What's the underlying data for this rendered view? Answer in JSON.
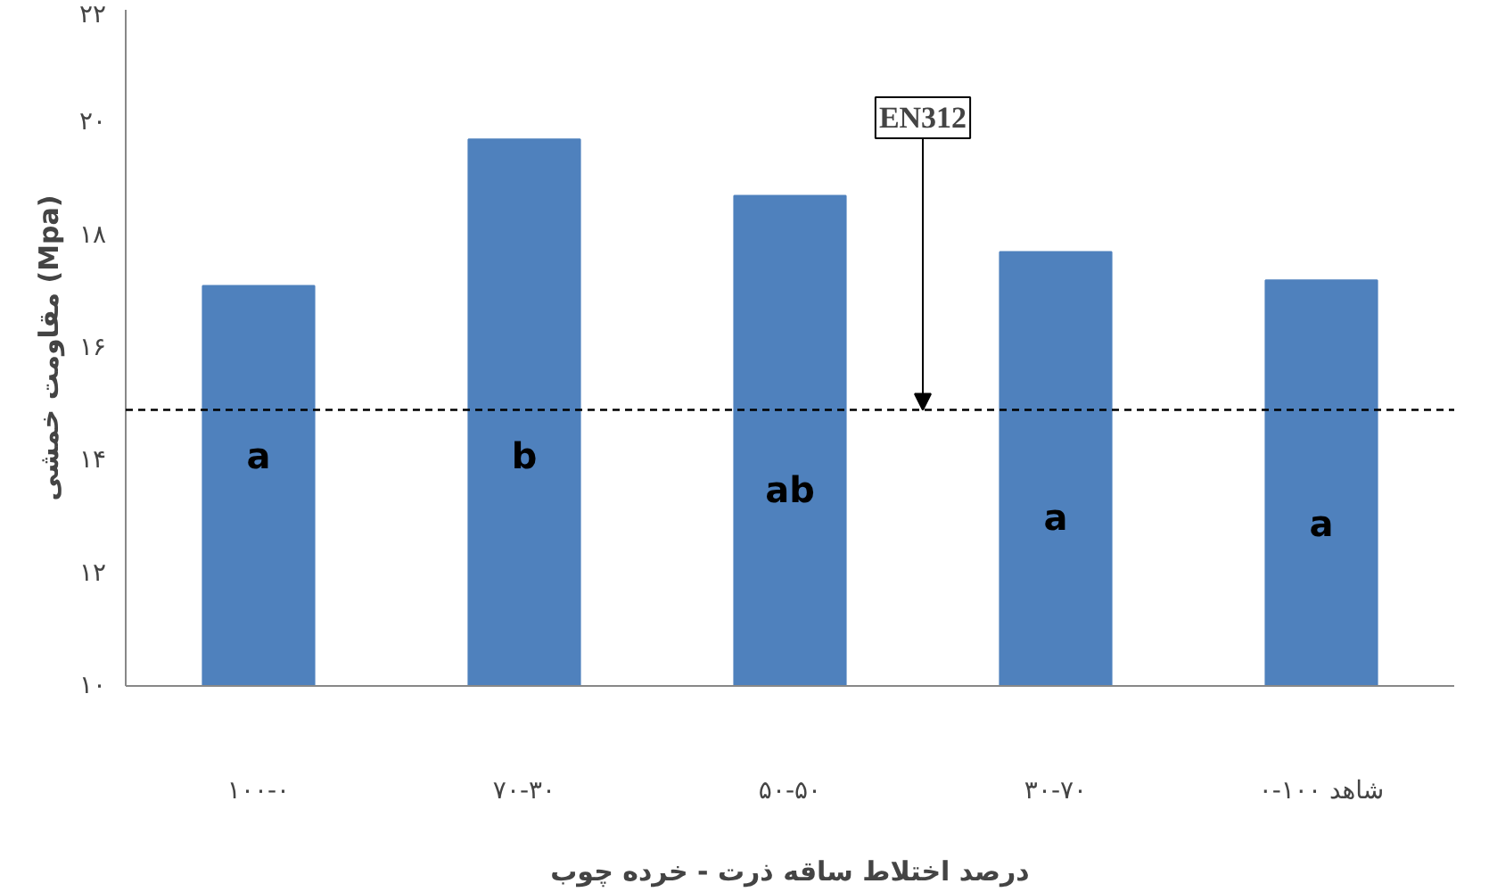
{
  "chart_data": {
    "type": "bar",
    "ylabel": "مقاومت خمشی (Mpa)",
    "xlabel": "درصد اختلاط ساقه ذرت - خرده چوب",
    "categories": [
      "۱۰۰-۰",
      "۷۰-۳۰",
      "۵۰-۵۰",
      "۳۰-۷۰",
      "۰-۱۰۰ شاهد"
    ],
    "values": [
      17.1,
      19.7,
      18.7,
      17.7,
      17.2
    ],
    "color": "#4f81bd",
    "ylim": [
      10,
      22
    ],
    "yticks": [
      {
        "value": 10,
        "label": "۱۰"
      },
      {
        "value": 12,
        "label": "۱۲"
      },
      {
        "value": 14,
        "label": "۱۴"
      },
      {
        "value": 16,
        "label": "۱۶"
      },
      {
        "value": 18,
        "label": "۱۸"
      },
      {
        "value": 20,
        "label": "۲۰"
      },
      {
        "value": 22,
        "label": "۲۲"
      }
    ],
    "grid": false,
    "ref_lines": [
      {
        "axis": "y",
        "value": 14.9,
        "label": "EN312",
        "color": "#000000",
        "line_style": "dashed"
      }
    ],
    "annotations": [
      "a",
      "b",
      "ab",
      "a",
      "a"
    ]
  }
}
